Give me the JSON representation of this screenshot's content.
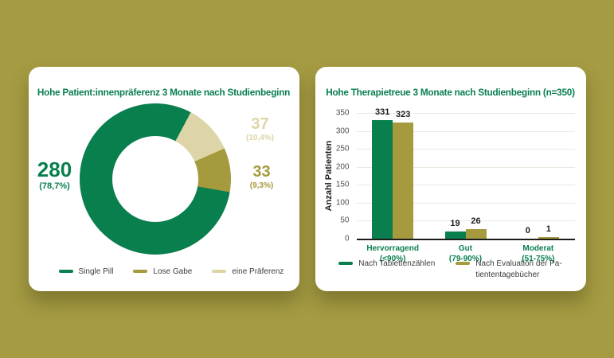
{
  "background_color": "#a59b43",
  "colors": {
    "brand_green": "#087f4d",
    "brand_olive": "#a69a3e",
    "brand_beige": "#ddd5a8",
    "card_bg": "#ffffff",
    "axis_line": "#1d1d1b",
    "gridline": "#e9e9e2",
    "tick_text": "#4f4f4b"
  },
  "chart_data": [
    {
      "type": "pie",
      "subtype": "donut",
      "title": "Hohe Patient:innenpräferenz 3 Monate nach Studienbeginn",
      "start_angle_deg": 28,
      "segments": [
        {
          "label": "eine Präferenz",
          "value": 37,
          "percent_label": "(10,4%)",
          "color": "#ddd5a8"
        },
        {
          "label": "Lose Gabe",
          "value": 33,
          "percent_label": "(9,3%)",
          "color": "#a69a3e"
        },
        {
          "label": "Single Pill",
          "value": 280,
          "percent_label": "(78,7%)",
          "color": "#087f4d"
        }
      ],
      "legend": [
        {
          "label": "Single Pill",
          "color": "#087f4d"
        },
        {
          "label": "Lose Gabe",
          "color": "#a69a3e"
        },
        {
          "label": "eine Präferenz",
          "color": "#ddd5a8"
        }
      ],
      "legend_position": "bottom"
    },
    {
      "type": "bar",
      "title": "Hohe Therapietreue 3 Monate nach Studienbeginn (n=350)",
      "ylabel": "Anzahl Patienten",
      "ylim": [
        0,
        350
      ],
      "yticks": [
        0,
        50,
        100,
        150,
        200,
        250,
        300,
        350
      ],
      "grid": true,
      "categories": [
        {
          "line1": "Hervorragend",
          "line2": "(<90%)"
        },
        {
          "line1": "Gut",
          "line2": "(79-90%)"
        },
        {
          "line1": "Moderat",
          "line2": "(51-75%)"
        }
      ],
      "series": [
        {
          "name": "Nach Tablettenzählen",
          "color": "#087f4d",
          "values": [
            331,
            19,
            0
          ]
        },
        {
          "name": "Nach Evaluation der Pa-\ntiententagebücher",
          "color": "#a69a3e",
          "values": [
            323,
            26,
            1
          ]
        }
      ],
      "legend_position": "bottom"
    }
  ]
}
